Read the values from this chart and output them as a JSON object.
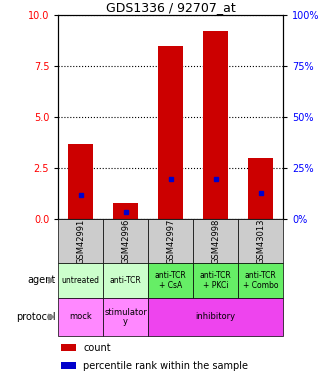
{
  "title": "GDS1336 / 92707_at",
  "samples": [
    "GSM42991",
    "GSM42996",
    "GSM42997",
    "GSM42998",
    "GSM43013"
  ],
  "count_values": [
    3.7,
    0.8,
    8.5,
    9.2,
    3.0
  ],
  "percentile_values": [
    1.2,
    0.35,
    2.0,
    2.0,
    1.3
  ],
  "ylim_left": [
    0,
    10
  ],
  "ylim_right": [
    0,
    100
  ],
  "yticks_left": [
    0,
    2.5,
    5,
    7.5,
    10
  ],
  "yticks_right": [
    0,
    25,
    50,
    75,
    100
  ],
  "agent_labels": [
    "untreated",
    "anti-TCR",
    "anti-TCR\n+ CsA",
    "anti-TCR\n+ PKCi",
    "anti-TCR\n+ Combo"
  ],
  "agent_colors_light": [
    "#ccffcc",
    "#ccffcc"
  ],
  "agent_colors_dark": [
    "#66ee66",
    "#66ee66",
    "#66ee66"
  ],
  "protocol_mock_color": "#ff88ff",
  "protocol_stim_color": "#ff88ff",
  "protocol_inhib_color": "#ee44ee",
  "gsm_bg_color": "#cccccc",
  "bar_color": "#cc0000",
  "dot_color": "#0000cc",
  "bar_width": 0.55,
  "legend_count_color": "#cc0000",
  "legend_dot_color": "#0000cc",
  "left_label_color": "#444444",
  "arrow_color": "#888888"
}
